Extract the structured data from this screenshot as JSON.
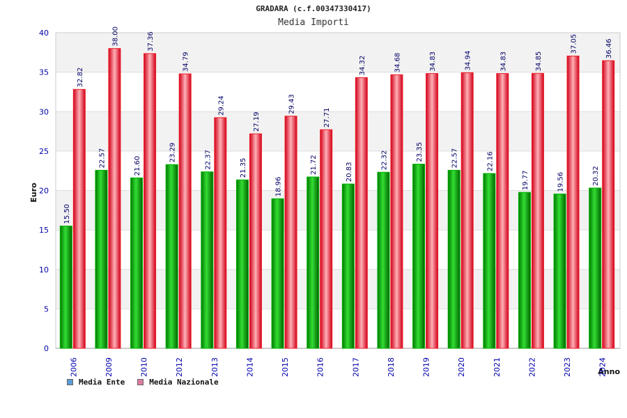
{
  "header": {
    "title": "GRADARA (c.f.00347330417)",
    "subtitle": "Media Importi"
  },
  "legend": {
    "items": [
      {
        "label": "Media Ente",
        "color": "#5b9bd5"
      },
      {
        "label": "Media Nazionale",
        "color": "#e07ba0"
      }
    ]
  },
  "colors": {
    "series_ente": "#00b000",
    "series_nazionale": "#ee1c24",
    "band": "#f2f2f2",
    "axis_text": "#0000aa",
    "label_text": "#000066"
  },
  "chart_data": {
    "type": "bar",
    "title": "GRADARA (c.f.00347330417)",
    "subtitle": "Media Importi",
    "xlabel": "Anno",
    "ylabel": "Euro",
    "ylim": [
      0,
      40
    ],
    "yticks": [
      0,
      5,
      10,
      15,
      20,
      25,
      30,
      35,
      40
    ],
    "categories": [
      "2006",
      "2009",
      "2010",
      "2012",
      "2013",
      "2014",
      "2015",
      "2016",
      "2017",
      "2018",
      "2019",
      "2020",
      "2021",
      "2022",
      "2023",
      "2024"
    ],
    "series": [
      {
        "name": "Media Ente",
        "values": [
          15.5,
          22.57,
          21.6,
          23.29,
          22.37,
          21.35,
          18.96,
          21.72,
          20.83,
          22.32,
          23.35,
          22.57,
          22.16,
          19.77,
          19.56,
          20.32
        ],
        "labels": [
          "15.50",
          "22.57",
          "21.60",
          "23.29",
          "22.37",
          "21.35",
          "18.96",
          "21.72",
          "20.83",
          "22.32",
          "23.35",
          "22.57",
          "22.16",
          "19.77",
          "19.56",
          "20.32"
        ]
      },
      {
        "name": "Media Nazionale",
        "values": [
          32.82,
          38.0,
          37.36,
          34.79,
          29.24,
          27.19,
          29.43,
          27.71,
          34.32,
          34.68,
          34.83,
          34.94,
          34.83,
          34.85,
          37.05,
          36.46
        ],
        "labels": [
          "32.82",
          "38.00",
          "37.36",
          "34.79",
          "29.24",
          "27.19",
          "29.43",
          "27.71",
          "34.32",
          "34.68",
          "34.83",
          "34.94",
          "34.83",
          "34.85",
          "37.05",
          "36.46"
        ]
      }
    ]
  }
}
